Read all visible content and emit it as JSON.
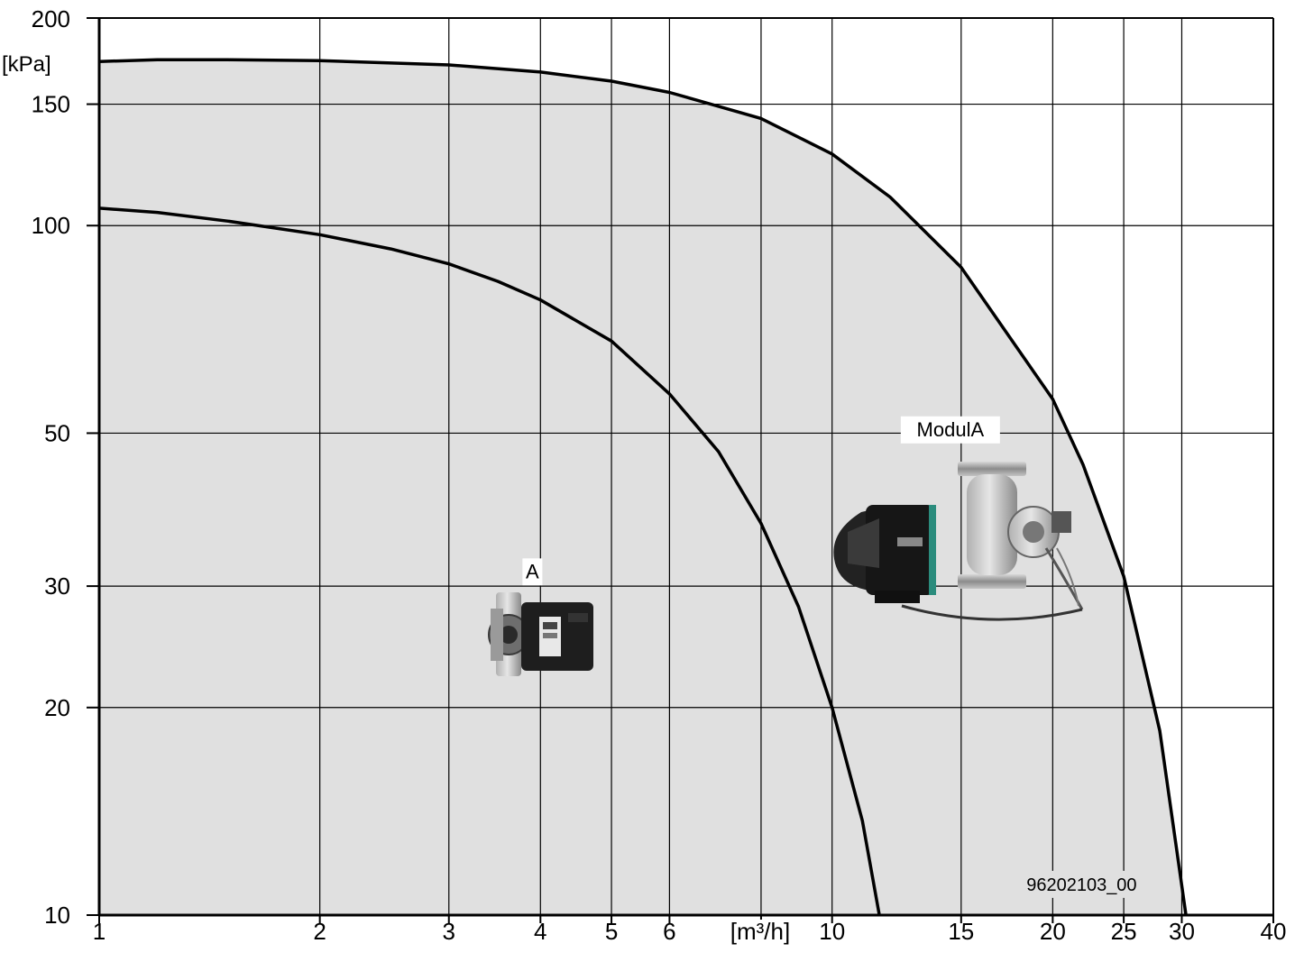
{
  "chart_data": {
    "type": "line",
    "title": "",
    "xlabel": "[m³/h]",
    "ylabel": "[kPa]",
    "x_scale": "log",
    "y_scale": "log",
    "xlim": [
      1,
      40
    ],
    "ylim": [
      10,
      200
    ],
    "x_ticks": [
      1,
      2,
      3,
      4,
      5,
      6,
      10,
      15,
      20,
      25,
      30,
      40
    ],
    "x_tick_labels": [
      "1",
      "2",
      "3",
      "4",
      "5",
      "6",
      "10",
      "15",
      "20",
      "25",
      "30",
      "40"
    ],
    "x_gridlines": [
      2,
      3,
      4,
      5,
      6,
      8,
      10,
      15,
      20,
      25,
      30
    ],
    "y_ticks": [
      10,
      20,
      30,
      50,
      100,
      150,
      200
    ],
    "y_tick_labels": [
      "10",
      "20",
      "30",
      "50",
      "100",
      "150",
      "200"
    ],
    "y_gridlines": [
      20,
      30,
      50,
      100,
      150
    ],
    "grid": true,
    "area_fill": "#e0e0e0",
    "series": [
      {
        "name": "A",
        "color": "#000000",
        "x": [
          1.0,
          1.2,
          1.5,
          2.0,
          2.5,
          3.0,
          3.5,
          4.0,
          5.0,
          6.0,
          7.0,
          8.0,
          9.0,
          10.0,
          11.0,
          11.6
        ],
        "y": [
          106,
          104.5,
          101.5,
          97,
          92.5,
          88,
          83,
          78,
          68,
          57,
          47,
          37,
          28,
          20,
          13.7,
          10
        ]
      },
      {
        "name": "ModulA",
        "color": "#000000",
        "x": [
          1.0,
          1.2,
          1.5,
          2.0,
          3.0,
          4.0,
          5.0,
          6.0,
          8.0,
          10.0,
          12.0,
          15.0,
          20.0,
          22.0,
          25.0,
          28.0,
          30.4
        ],
        "y": [
          173,
          174,
          174,
          173.5,
          171,
          167,
          162,
          156,
          143,
          127,
          110,
          87,
          56,
          45,
          31,
          18.5,
          10
        ]
      }
    ],
    "annotations": [
      {
        "text": "A",
        "x": 3.9,
        "y": 30.8
      },
      {
        "text": "ModulA",
        "x": 14.5,
        "y": 49.5
      },
      {
        "text": "96202103_00",
        "x": 21.9,
        "y": 10.85
      }
    ]
  }
}
